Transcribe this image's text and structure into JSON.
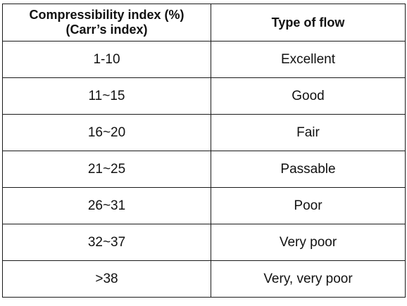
{
  "table": {
    "headers": {
      "index_line1": "Compressibility index (%)",
      "index_line2": "(Carr’s index)",
      "flow": "Type of flow"
    },
    "rows": [
      {
        "index": "1-10",
        "flow": "Excellent"
      },
      {
        "index": "11~15",
        "flow": "Good"
      },
      {
        "index": "16~20",
        "flow": "Fair"
      },
      {
        "index": "21~25",
        "flow": "Passable"
      },
      {
        "index": "26~31",
        "flow": "Poor"
      },
      {
        "index": "32~37",
        "flow": "Very poor"
      },
      {
        "index": ">38",
        "flow": "Very, very poor"
      }
    ]
  }
}
